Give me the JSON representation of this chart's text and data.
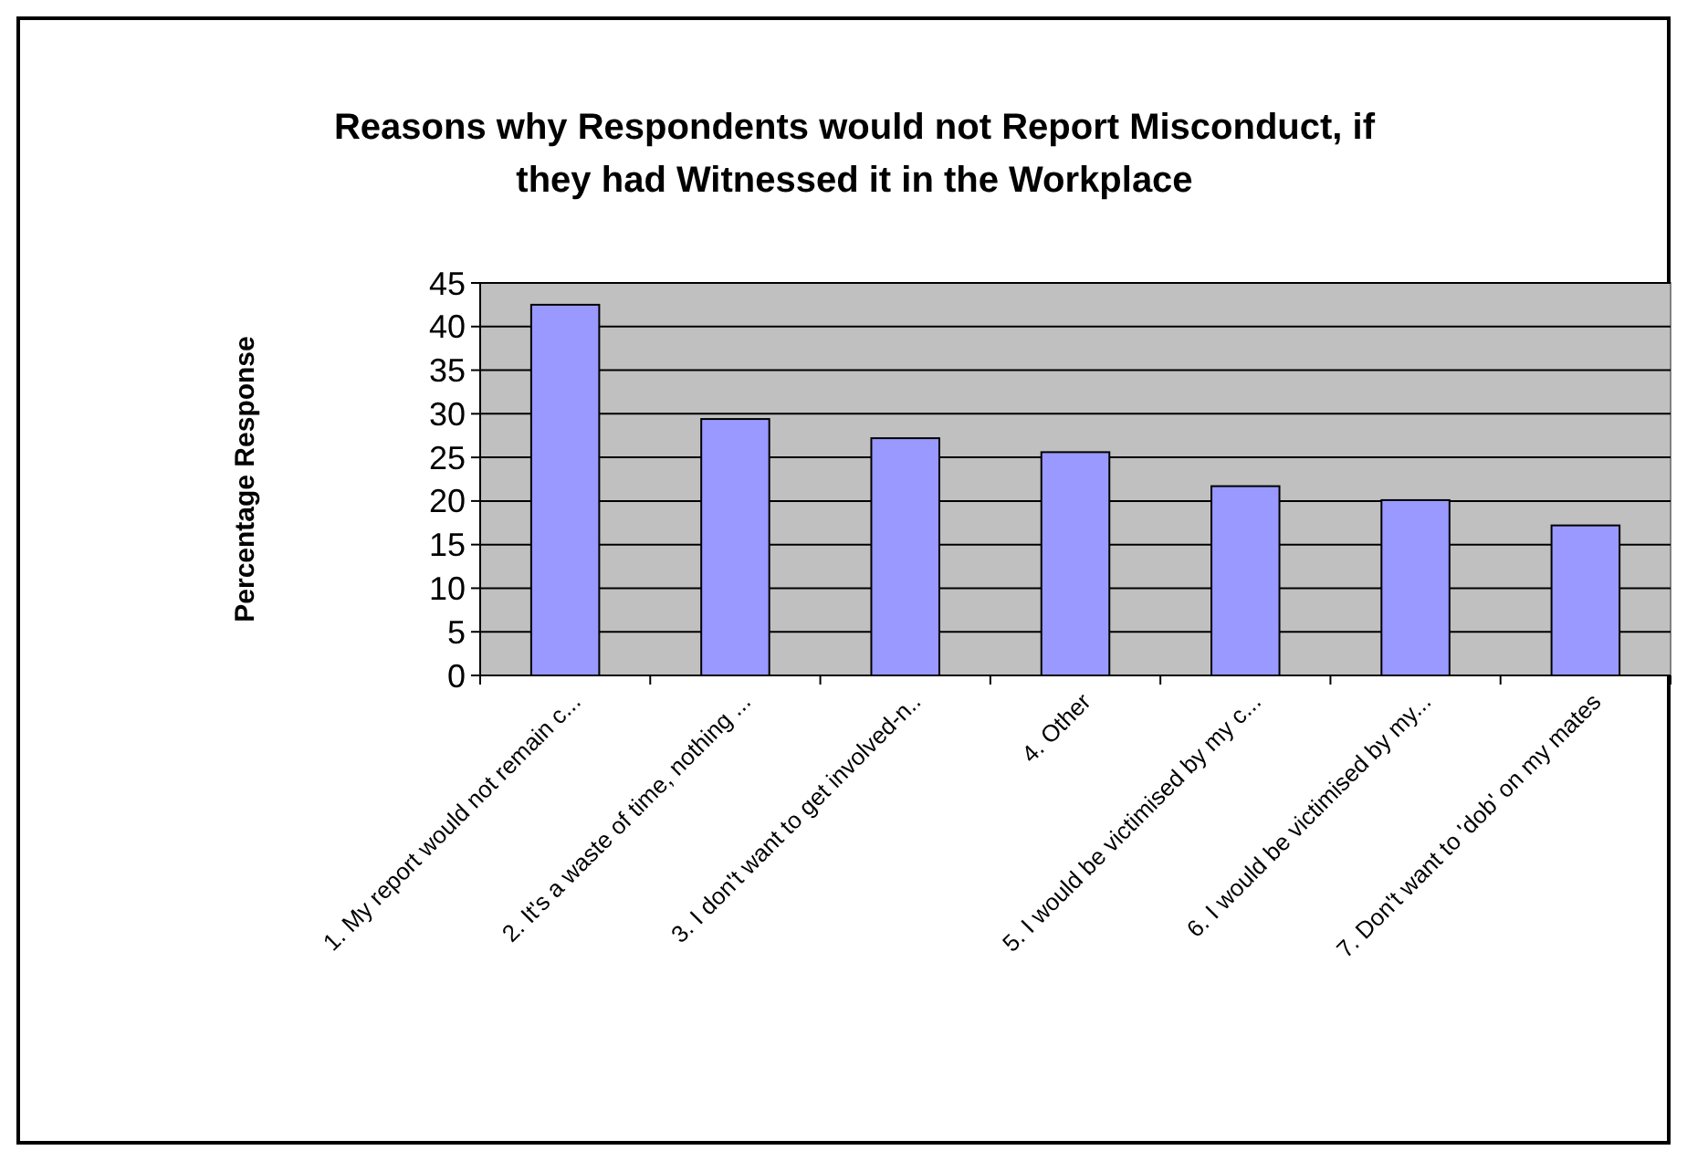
{
  "chart_data": {
    "type": "bar",
    "title": "Reasons why Respondents would not Report Misconduct, if they had Witnessed it in the Workplace",
    "ylabel": "Percentage Response",
    "categories": [
      "1. My report would not remain c...",
      "2. It's a waste of time, nothing ...",
      "3. I don't want to get involved-n..",
      "4. Other",
      "5. I would be victimised by my c...",
      "6. I would be victimised by my...",
      "7. Don't want to 'dob' on my mates"
    ],
    "values": [
      42.5,
      29.4,
      27.2,
      25.6,
      21.7,
      20.1,
      17.2
    ],
    "color": "#9999ff",
    "ylim": [
      0,
      45
    ],
    "yticks": [
      0,
      5,
      10,
      15,
      20,
      25,
      30,
      35,
      40,
      45
    ],
    "grid": "y"
  }
}
